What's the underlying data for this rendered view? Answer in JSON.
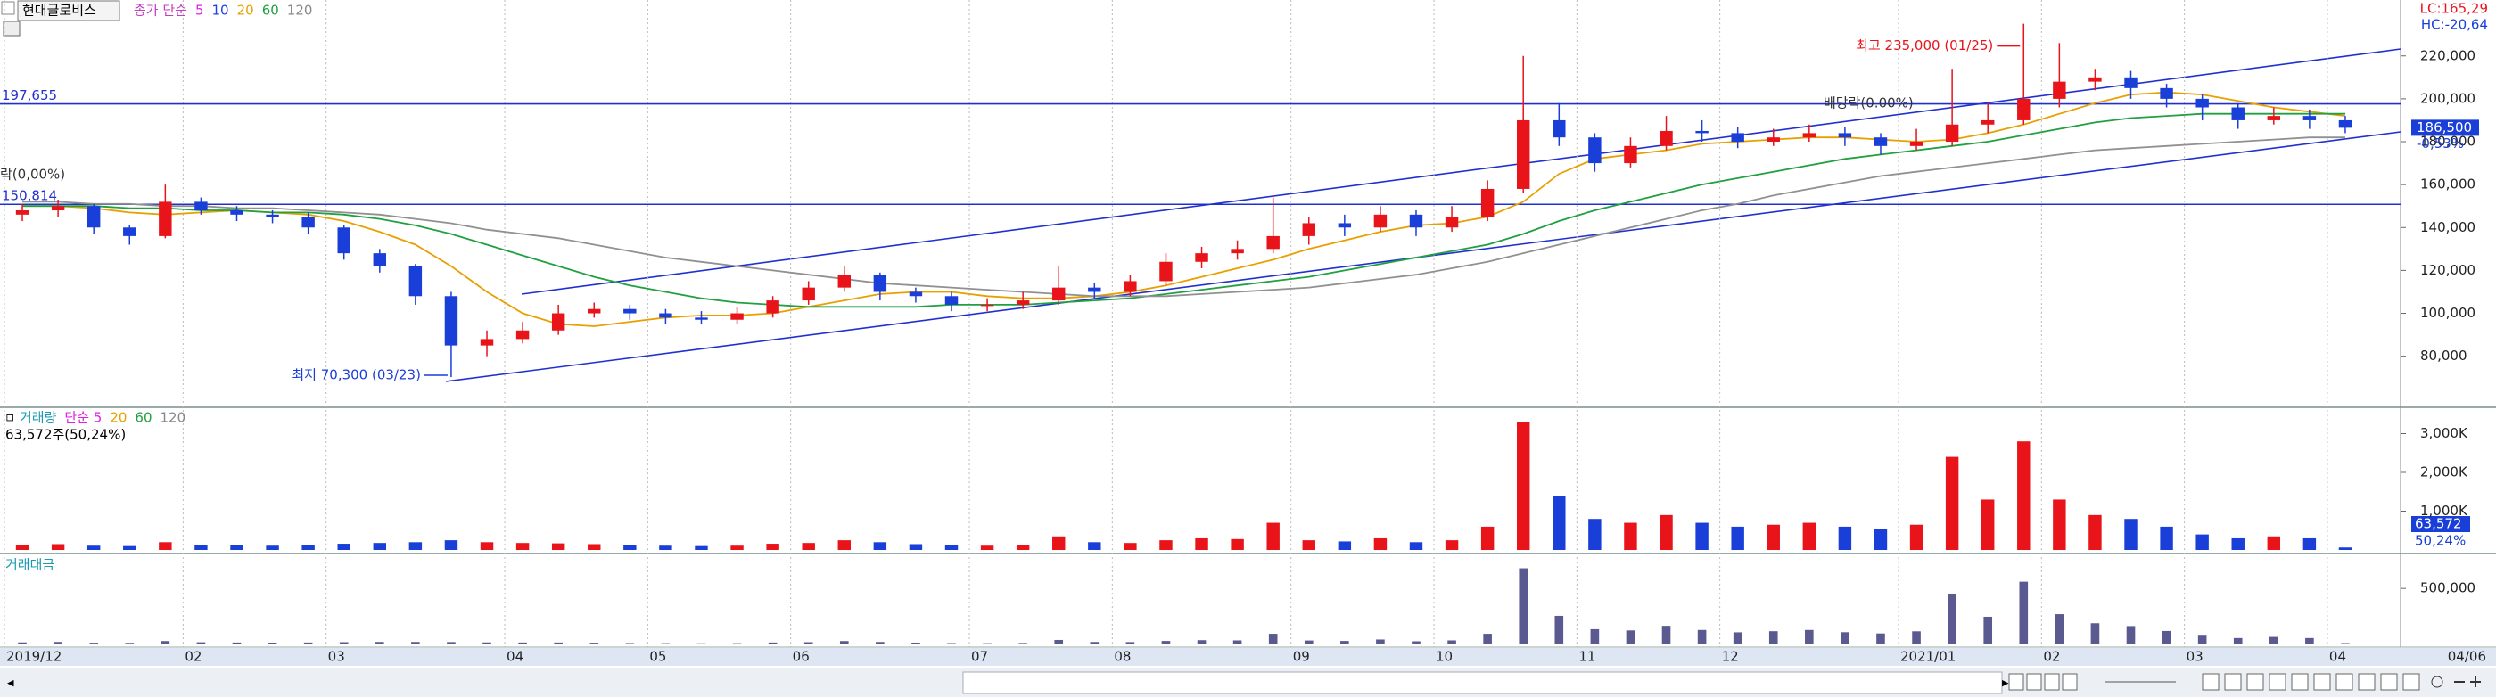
{
  "chart_data": {
    "type": "candlestick",
    "title": "현대글로비스",
    "price_legend": [
      {
        "text": "종가 단순",
        "color": "#c03fc0"
      },
      {
        "text": "5",
        "color": "#e020e0"
      },
      {
        "text": "10",
        "color": "#2040e0"
      },
      {
        "text": "20",
        "color": "#e8a000"
      },
      {
        "text": "60",
        "color": "#20a040"
      },
      {
        "text": "120",
        "color": "#888888"
      }
    ],
    "lc_label": "LC:165,29",
    "hc_label": "HC:-20,64",
    "categories": [
      "2019/12",
      null,
      null,
      null,
      null,
      "02",
      null,
      null,
      null,
      "03",
      null,
      null,
      null,
      null,
      "04",
      null,
      null,
      null,
      "05",
      null,
      null,
      null,
      "06",
      null,
      null,
      null,
      null,
      "07",
      null,
      null,
      null,
      "08",
      null,
      null,
      null,
      null,
      "09",
      null,
      null,
      null,
      "10",
      null,
      null,
      null,
      "11",
      null,
      null,
      null,
      "12",
      null,
      null,
      null,
      null,
      "2021/01",
      null,
      null,
      null,
      "02",
      null,
      null,
      null,
      "03",
      null,
      null,
      null,
      "04"
    ],
    "last_date": "04/06",
    "open": [
      146000,
      148000,
      150000,
      140000,
      136000,
      152000,
      148000,
      146000,
      145000,
      140000,
      128000,
      122000,
      108000,
      85000,
      88000,
      92000,
      100000,
      102000,
      100000,
      98000,
      97000,
      100000,
      106000,
      112000,
      118000,
      110000,
      108000,
      104000,
      104000,
      106000,
      112000,
      110000,
      115000,
      124000,
      128000,
      130000,
      136000,
      142000,
      140000,
      146000,
      140000,
      145000,
      158000,
      190000,
      182000,
      170000,
      178000,
      185000,
      184000,
      180000,
      182000,
      184000,
      182000,
      178000,
      180000,
      188000,
      190000,
      200000,
      208000,
      210000,
      205000,
      200000,
      196000,
      190000,
      192000,
      190000
    ],
    "high": [
      151000,
      153000,
      151000,
      141000,
      160000,
      154000,
      150000,
      148000,
      147000,
      141000,
      130000,
      123000,
      110000,
      92000,
      96000,
      104000,
      105000,
      104000,
      102000,
      101000,
      103000,
      108000,
      115000,
      122000,
      119000,
      112000,
      110000,
      107000,
      110000,
      122000,
      114000,
      118000,
      128000,
      131000,
      134000,
      154000,
      145000,
      146000,
      150000,
      148000,
      150000,
      162000,
      220000,
      198000,
      184000,
      182000,
      192000,
      190000,
      187000,
      186000,
      188000,
      187000,
      184000,
      186000,
      214000,
      198000,
      235000,
      226000,
      214000,
      213000,
      207000,
      202000,
      198000,
      196000,
      195000,
      192000
    ],
    "low": [
      143000,
      145000,
      137000,
      132000,
      135000,
      146000,
      143000,
      142000,
      137000,
      125000,
      119000,
      104000,
      70300,
      80000,
      86000,
      90000,
      98000,
      97000,
      95000,
      95000,
      95000,
      98000,
      104000,
      110000,
      106000,
      105000,
      101000,
      101000,
      102000,
      104000,
      107000,
      108000,
      113000,
      121000,
      125000,
      128000,
      132000,
      136000,
      138000,
      136000,
      138000,
      143000,
      156000,
      178000,
      166000,
      168000,
      176000,
      180000,
      177000,
      178000,
      180000,
      178000,
      174000,
      176000,
      178000,
      184000,
      188000,
      196000,
      204000,
      200000,
      196000,
      190000,
      186000,
      188000,
      186000,
      184000
    ],
    "close": [
      148000,
      150000,
      140000,
      136000,
      152000,
      148000,
      146000,
      145000,
      140000,
      128000,
      122000,
      108000,
      85000,
      88000,
      92000,
      100000,
      102000,
      100000,
      98000,
      97000,
      100000,
      106000,
      112000,
      118000,
      110000,
      108000,
      104000,
      104000,
      106000,
      112000,
      110000,
      115000,
      124000,
      128000,
      130000,
      136000,
      142000,
      140000,
      146000,
      140000,
      145000,
      158000,
      190000,
      182000,
      170000,
      178000,
      185000,
      184000,
      180000,
      182000,
      184000,
      182000,
      178000,
      180000,
      188000,
      190000,
      200000,
      208000,
      210000,
      205000,
      200000,
      196000,
      190000,
      192000,
      190000,
      186500
    ],
    "up_color": "#e8141a",
    "down_color": "#1a3fd8",
    "series": [
      {
        "name": "20",
        "color": "#e8a000",
        "values": [
          150000,
          150000,
          149000,
          147000,
          146000,
          147000,
          148000,
          147000,
          146000,
          143000,
          138000,
          132000,
          122000,
          110000,
          100000,
          95000,
          94000,
          96000,
          98000,
          99000,
          99000,
          100000,
          103000,
          106000,
          109000,
          110000,
          110000,
          108000,
          107000,
          107000,
          108000,
          110000,
          113000,
          117000,
          121000,
          125000,
          130000,
          134000,
          138000,
          141000,
          142000,
          145000,
          152000,
          165000,
          172000,
          174000,
          176000,
          179000,
          180000,
          181000,
          182000,
          182000,
          181000,
          180000,
          181000,
          184000,
          188000,
          193000,
          198000,
          202000,
          203000,
          202000,
          199000,
          196000,
          194000,
          192000
        ]
      },
      {
        "name": "60",
        "color": "#20a040",
        "values": [
          150000,
          150000,
          150000,
          149000,
          149000,
          148000,
          148000,
          147000,
          147000,
          146000,
          144000,
          141000,
          137000,
          132000,
          127000,
          122000,
          117000,
          113000,
          110000,
          107000,
          105000,
          104000,
          103000,
          103000,
          103000,
          103000,
          104000,
          104000,
          104000,
          105000,
          106000,
          107000,
          109000,
          111000,
          113000,
          115000,
          117000,
          120000,
          123000,
          126000,
          129000,
          132000,
          137000,
          143000,
          148000,
          152000,
          156000,
          160000,
          163000,
          166000,
          169000,
          172000,
          174000,
          176000,
          178000,
          180000,
          183000,
          186000,
          189000,
          191000,
          192000,
          193000,
          193000,
          193000,
          193000,
          193000
        ]
      },
      {
        "name": "120",
        "color": "#909090",
        "values": [
          152000,
          152000,
          151000,
          151000,
          150000,
          150000,
          149000,
          149000,
          148000,
          147000,
          146000,
          144000,
          142000,
          139000,
          137000,
          135000,
          132000,
          129000,
          126000,
          124000,
          122000,
          120000,
          118000,
          116000,
          114000,
          113000,
          112000,
          111000,
          110000,
          109000,
          108000,
          108000,
          108000,
          109000,
          110000,
          111000,
          112000,
          114000,
          116000,
          118000,
          121000,
          124000,
          128000,
          132000,
          136000,
          140000,
          144000,
          148000,
          151000,
          155000,
          158000,
          161000,
          164000,
          166000,
          168000,
          170000,
          172000,
          174000,
          176000,
          177000,
          178000,
          179000,
          180000,
          181000,
          182000,
          182000
        ]
      }
    ],
    "ylim": [
      57000,
      244000
    ],
    "yticks": [
      {
        "value": 80000,
        "label": "80,000"
      },
      {
        "value": 100000,
        "label": "100,000"
      },
      {
        "value": 120000,
        "label": "120,000"
      },
      {
        "value": 140000,
        "label": "140,000"
      },
      {
        "value": 160000,
        "label": "160,000"
      },
      {
        "value": 180000,
        "label": "180,000"
      },
      {
        "value": 200000,
        "label": "200,000"
      },
      {
        "value": 220000,
        "label": "220,000"
      }
    ],
    "hlines": [
      {
        "value": 197655,
        "label": "197,655"
      },
      {
        "value": 150814,
        "label": "150,814"
      }
    ],
    "high_label": "최고 235,000 (01/25)",
    "low_label": "최저 70,300 (03/23)",
    "ex_dividend_left": "락(0,00%)",
    "ex_dividend_right": "배당락(0.00%)",
    "current_price": {
      "value": 186500,
      "label": "186,500"
    },
    "change_label": "-0,53%",
    "volume": {
      "legend": [
        {
          "text": "거래량",
          "color": "#1a9ab0"
        },
        {
          "text": "단순 5",
          "color": "#e020e0"
        },
        {
          "text": "20",
          "color": "#e8a000"
        },
        {
          "text": "60",
          "color": "#20a040"
        },
        {
          "text": "120",
          "color": "#888888"
        }
      ],
      "info": "63,572주(50,24%)",
      "values": [
        120000,
        150000,
        110000,
        100000,
        200000,
        130000,
        120000,
        110000,
        120000,
        160000,
        180000,
        200000,
        250000,
        200000,
        180000,
        170000,
        150000,
        120000,
        110000,
        100000,
        110000,
        160000,
        180000,
        250000,
        200000,
        150000,
        120000,
        110000,
        120000,
        350000,
        200000,
        180000,
        250000,
        300000,
        280000,
        700000,
        250000,
        220000,
        300000,
        200000,
        250000,
        600000,
        3300000,
        1400000,
        800000,
        700000,
        900000,
        700000,
        600000,
        650000,
        700000,
        600000,
        550000,
        650000,
        2400000,
        1300000,
        2800000,
        1300000,
        900000,
        800000,
        600000,
        400000,
        300000,
        350000,
        300000,
        63572
      ],
      "ylim": [
        0,
        3540000
      ],
      "yticks": [
        {
          "value": 1000000,
          "label": "1,000K"
        },
        {
          "value": 2000000,
          "label": "2,000K"
        },
        {
          "value": 3000000,
          "label": "3,000K"
        }
      ],
      "last_label": "63,572",
      "ratio_label": "50,24%"
    },
    "trading_value": {
      "title": "거래대금",
      "color": "#5a5a90",
      "values": [
        18000,
        22000,
        15000,
        14000,
        30000,
        19000,
        17000,
        16000,
        17000,
        20000,
        22000,
        22000,
        21000,
        18000,
        17000,
        17000,
        15000,
        12000,
        11000,
        10000,
        11000,
        17000,
        20000,
        30000,
        22000,
        16000,
        12000,
        11000,
        13000,
        40000,
        22000,
        21000,
        31000,
        38000,
        36000,
        95000,
        35000,
        31000,
        44000,
        28000,
        36000,
        95000,
        680000,
        255000,
        136000,
        125000,
        166000,
        129000,
        108000,
        118000,
        129000,
        109000,
        98000,
        117000,
        450000,
        247000,
        560000,
        270000,
        189000,
        164000,
        120000,
        78000,
        57000,
        67000,
        57000,
        12000
      ],
      "ylim": [
        0,
        740000
      ],
      "yticks": [
        {
          "value": 500000,
          "label": "500,000"
        }
      ]
    }
  }
}
